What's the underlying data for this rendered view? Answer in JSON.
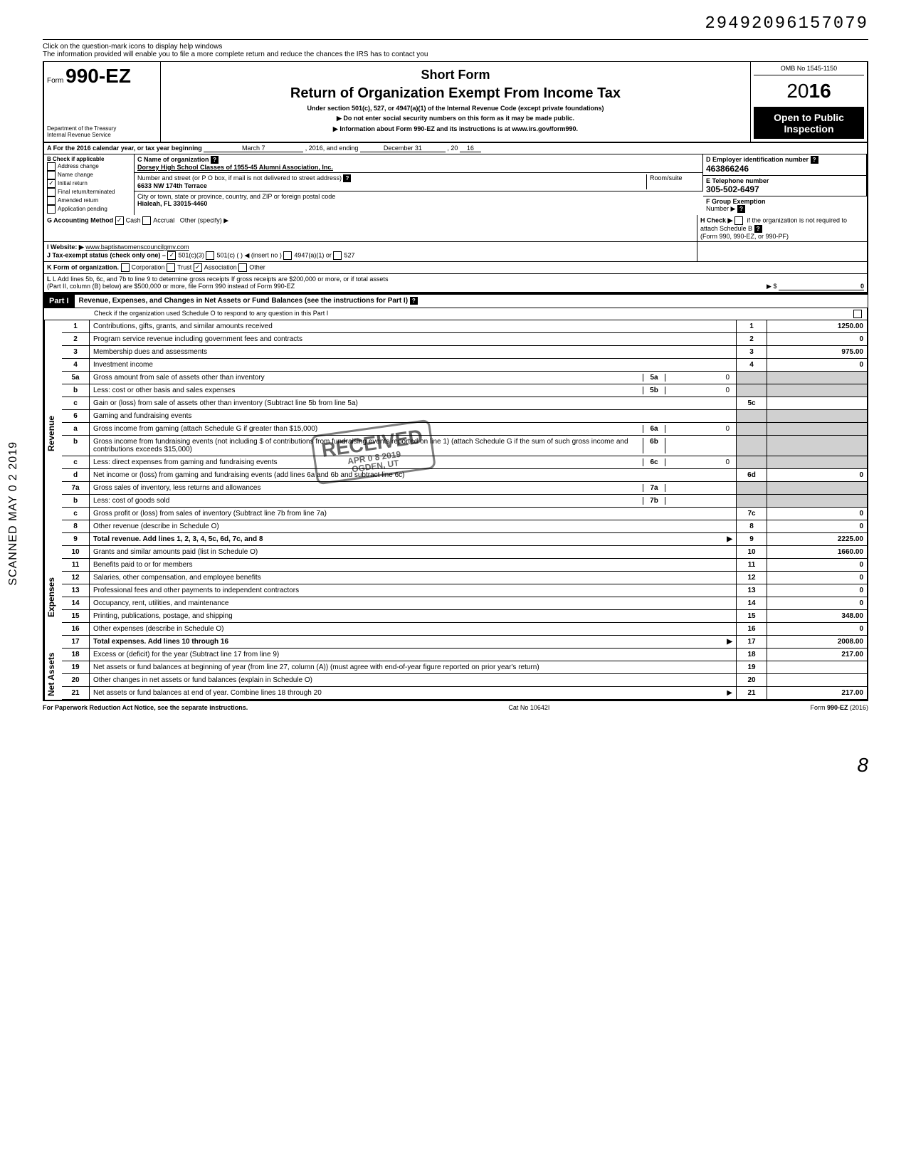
{
  "top_id": "29492096157079",
  "help_banner": {
    "line1": "Click on the question-mark icons to display help windows",
    "line2": "The information provided will enable you to file a more complete return and reduce the chances the IRS has to contact you"
  },
  "header": {
    "form_prefix": "Form",
    "form_number": "990-EZ",
    "short_form": "Short Form",
    "title": "Return of Organization Exempt From Income Tax",
    "subtitle": "Under section 501(c), 527, or 4947(a)(1) of the Internal Revenue Code (except private foundations)",
    "no_ssn": "▶ Do not enter social security numbers on this form as it may be made public.",
    "info": "▶ Information about Form 990-EZ and its instructions is at www.irs.gov/form990.",
    "dept1": "Department of the Treasury",
    "dept2": "Internal Revenue Service",
    "omb": "OMB No 1545-1150",
    "year_prefix": "20",
    "year_bold": "16",
    "open": "Open to Public Inspection"
  },
  "line_a": {
    "label": "A For the 2016 calendar year, or tax year beginning",
    "month": "March 7",
    "mid": ", 2016, and ending",
    "end_month": "December 31",
    "end_year_prefix": ", 20",
    "end_year": "16"
  },
  "box_b": {
    "title": "B Check if applicable",
    "items": [
      "Address change",
      "Name change",
      "Initial return",
      "Final return/terminated",
      "Amended return",
      "Application pending"
    ],
    "checked_index": 2
  },
  "box_c": {
    "label": "C Name of organization",
    "name": "Dorsey High School Classes of 1955-45 Alumni Association, Inc.",
    "street_label": "Number and street (or P O box, if mail is not delivered to street address)",
    "street": "6633 NW 174th Terrace",
    "city_label": "City or town, state or province, country, and ZIP or foreign postal code",
    "city": "Hialeah, FL 33015-4460",
    "room_label": "Room/suite"
  },
  "box_d": {
    "label": "D Employer identification number",
    "value": "463866246"
  },
  "box_e": {
    "label": "E Telephone number",
    "value": "305-502-6497"
  },
  "box_f": {
    "label": "F Group Exemption",
    "sub": "Number ▶"
  },
  "line_g": {
    "label": "G Accounting Method",
    "cash": "Cash",
    "accrual": "Accrual",
    "other": "Other (specify) ▶"
  },
  "line_h": {
    "label": "H Check ▶",
    "text": "if the organization is not required to attach Schedule B",
    "sub": "(Form 990, 990-EZ, or 990-PF)"
  },
  "line_i": {
    "label": "I Website: ▶",
    "value": "www.baptistwomenscouncilgmv.com"
  },
  "line_j": {
    "label": "J Tax-exempt status (check only one) –",
    "opts": [
      "501(c)(3)",
      "501(c) (     ) ◀ (insert no )",
      "4947(a)(1) or",
      "527"
    ]
  },
  "line_k": {
    "label": "K Form of organization.",
    "opts": [
      "Corporation",
      "Trust",
      "Association",
      "Other"
    ],
    "checked": 2
  },
  "line_l": {
    "text1": "L Add lines 5b, 6c, and 7b to line 9 to determine gross receipts If gross receipts are $200,000 or more, or if total assets",
    "text2": "(Part II, column (B) below) are $500,000 or more, file Form 990 instead of Form 990-EZ",
    "arrow": "▶ $",
    "value": "0"
  },
  "part1": {
    "label": "Part I",
    "title": "Revenue, Expenses, and Changes in Net Assets or Fund Balances (see the instructions for Part I)",
    "check_line": "Check if the organization used Schedule O to respond to any question in this Part I"
  },
  "sections": {
    "revenue": "Revenue",
    "expenses": "Expenses",
    "netassets": "Net Assets"
  },
  "lines": [
    {
      "n": "1",
      "desc": "Contributions, gifts, grants, and similar amounts received",
      "ln": "1",
      "amt": "1250.00"
    },
    {
      "n": "2",
      "desc": "Program service revenue including government fees and contracts",
      "ln": "2",
      "amt": "0"
    },
    {
      "n": "3",
      "desc": "Membership dues and assessments",
      "ln": "3",
      "amt": "975.00"
    },
    {
      "n": "4",
      "desc": "Investment income",
      "ln": "4",
      "amt": "0"
    },
    {
      "n": "5a",
      "desc": "Gross amount from sale of assets other than inventory",
      "sub_ln": "5a",
      "sub_amt": "0"
    },
    {
      "n": "b",
      "desc": "Less: cost or other basis and sales expenses",
      "sub_ln": "5b",
      "sub_amt": "0"
    },
    {
      "n": "c",
      "desc": "Gain or (loss) from sale of assets other than inventory (Subtract line 5b from line 5a)",
      "ln": "5c",
      "amt": ""
    },
    {
      "n": "6",
      "desc": "Gaming and fundraising events"
    },
    {
      "n": "a",
      "desc": "Gross income from gaming (attach Schedule G if greater than $15,000)",
      "sub_ln": "6a",
      "sub_amt": "0"
    },
    {
      "n": "b",
      "desc": "Gross income from fundraising events (not including $        of contributions from fundraising events reported on line 1) (attach Schedule G if the sum of such gross income and contributions exceeds $15,000)",
      "sub_ln": "6b",
      "sub_amt": ""
    },
    {
      "n": "c",
      "desc": "Less: direct expenses from gaming and fundraising events",
      "sub_ln": "6c",
      "sub_amt": "0"
    },
    {
      "n": "d",
      "desc": "Net income or (loss) from gaming and fundraising events (add lines 6a and 6b and subtract line 6c)",
      "ln": "6d",
      "amt": "0"
    },
    {
      "n": "7a",
      "desc": "Gross sales of inventory, less returns and allowances",
      "sub_ln": "7a",
      "sub_amt": ""
    },
    {
      "n": "b",
      "desc": "Less: cost of goods sold",
      "sub_ln": "7b",
      "sub_amt": ""
    },
    {
      "n": "c",
      "desc": "Gross profit or (loss) from sales of inventory (Subtract line 7b from line 7a)",
      "ln": "7c",
      "amt": "0"
    },
    {
      "n": "8",
      "desc": "Other revenue (describe in Schedule O)",
      "ln": "8",
      "amt": "0"
    },
    {
      "n": "9",
      "desc": "Total revenue. Add lines 1, 2, 3, 4, 5c, 6d, 7c, and 8",
      "ln": "9",
      "amt": "2225.00",
      "bold": true,
      "arrow": true
    }
  ],
  "expense_lines": [
    {
      "n": "10",
      "desc": "Grants and similar amounts paid (list in Schedule O)",
      "ln": "10",
      "amt": "1660.00"
    },
    {
      "n": "11",
      "desc": "Benefits paid to or for members",
      "ln": "11",
      "amt": "0"
    },
    {
      "n": "12",
      "desc": "Salaries, other compensation, and employee benefits",
      "ln": "12",
      "amt": "0"
    },
    {
      "n": "13",
      "desc": "Professional fees and other payments to independent contractors",
      "ln": "13",
      "amt": "0"
    },
    {
      "n": "14",
      "desc": "Occupancy, rent, utilities, and maintenance",
      "ln": "14",
      "amt": "0"
    },
    {
      "n": "15",
      "desc": "Printing, publications, postage, and shipping",
      "ln": "15",
      "amt": "348.00"
    },
    {
      "n": "16",
      "desc": "Other expenses (describe in Schedule O)",
      "ln": "16",
      "amt": "0"
    },
    {
      "n": "17",
      "desc": "Total expenses. Add lines 10 through 16",
      "ln": "17",
      "amt": "2008.00",
      "bold": true,
      "arrow": true
    }
  ],
  "net_lines": [
    {
      "n": "18",
      "desc": "Excess or (deficit) for the year (Subtract line 17 from line 9)",
      "ln": "18",
      "amt": "217.00"
    },
    {
      "n": "19",
      "desc": "Net assets or fund balances at beginning of year (from line 27, column (A)) (must agree with end-of-year figure reported on prior year's return)",
      "ln": "19",
      "amt": ""
    },
    {
      "n": "20",
      "desc": "Other changes in net assets or fund balances (explain in Schedule O)",
      "ln": "20",
      "amt": ""
    },
    {
      "n": "21",
      "desc": "Net assets or fund balances at end of year. Combine lines 18 through 20",
      "ln": "21",
      "amt": "217.00",
      "arrow": true
    }
  ],
  "footer": {
    "left": "For Paperwork Reduction Act Notice, see the separate instructions.",
    "center": "Cat No 10642I",
    "right": "Form 990-EZ (2016)"
  },
  "scanned_label": "SCANNED MAY 0 2 2019",
  "stamp": {
    "main": "RECEIVED",
    "sub1": "APR 0 8 2019",
    "sub2": "OGDEN, UT"
  },
  "bottom_right": "8"
}
